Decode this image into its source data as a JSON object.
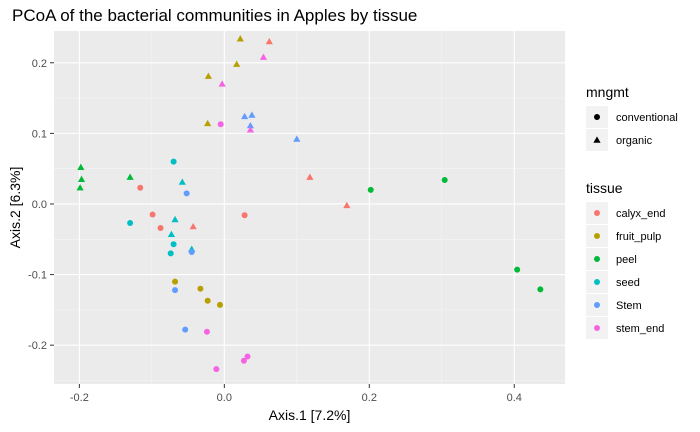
{
  "chart_data": {
    "type": "scatter",
    "title": "PCoA of the bacterial communities in Apples by tissue",
    "xlabel": "Axis.1   [7.2%]",
    "ylabel": "Axis.2   [6.3%]",
    "xlim": [
      -0.235,
      0.47
    ],
    "ylim": [
      -0.255,
      0.245
    ],
    "xticks": [
      -0.2,
      0.0,
      0.2,
      0.4
    ],
    "xtick_labels": [
      "-0.2",
      "0.0",
      "0.2",
      "0.4"
    ],
    "yticks": [
      -0.2,
      -0.1,
      0.0,
      0.1,
      0.2
    ],
    "ytick_labels": [
      "-0.2",
      "-0.1",
      "0.0",
      "0.1",
      "0.2"
    ],
    "grid": true,
    "background": "#ebebeb",
    "legends": [
      {
        "title": "mngmt",
        "placement": "right",
        "entries": [
          {
            "label": "conventional",
            "shape": "circle"
          },
          {
            "label": "organic",
            "shape": "triangle"
          }
        ]
      },
      {
        "title": "tissue",
        "placement": "right",
        "entries": [
          {
            "label": "calyx_end",
            "color": "#F8766D"
          },
          {
            "label": "fruit_pulp",
            "color": "#B79F00"
          },
          {
            "label": "peel",
            "color": "#00BA38"
          },
          {
            "label": "seed",
            "color": "#00BFC4"
          },
          {
            "label": "Stem",
            "color": "#619CFF"
          },
          {
            "label": "stem_end",
            "color": "#F564E3"
          }
        ]
      }
    ],
    "series": [
      {
        "name": "calyx_end",
        "color": "#F8766D",
        "points": [
          {
            "x": -0.116,
            "y": 0.023,
            "mngmt": "conventional"
          },
          {
            "x": -0.099,
            "y": -0.015,
            "mngmt": "conventional"
          },
          {
            "x": -0.088,
            "y": -0.034,
            "mngmt": "conventional"
          },
          {
            "x": 0.028,
            "y": -0.016,
            "mngmt": "conventional"
          },
          {
            "x": -0.043,
            "y": -0.032,
            "mngmt": "organic"
          },
          {
            "x": 0.118,
            "y": 0.038,
            "mngmt": "organic"
          },
          {
            "x": 0.169,
            "y": -0.002,
            "mngmt": "organic"
          },
          {
            "x": 0.062,
            "y": 0.23,
            "mngmt": "organic"
          }
        ]
      },
      {
        "name": "fruit_pulp",
        "color": "#B79F00",
        "points": [
          {
            "x": -0.068,
            "y": -0.11,
            "mngmt": "conventional"
          },
          {
            "x": -0.033,
            "y": -0.12,
            "mngmt": "conventional"
          },
          {
            "x": -0.023,
            "y": -0.137,
            "mngmt": "conventional"
          },
          {
            "x": -0.006,
            "y": -0.143,
            "mngmt": "conventional"
          },
          {
            "x": 0.022,
            "y": 0.234,
            "mngmt": "organic"
          },
          {
            "x": 0.017,
            "y": 0.198,
            "mngmt": "organic"
          },
          {
            "x": -0.022,
            "y": 0.181,
            "mngmt": "organic"
          },
          {
            "x": -0.023,
            "y": 0.114,
            "mngmt": "organic"
          }
        ]
      },
      {
        "name": "peel",
        "color": "#00BA38",
        "points": [
          {
            "x": 0.202,
            "y": 0.02,
            "mngmt": "conventional"
          },
          {
            "x": 0.304,
            "y": 0.034,
            "mngmt": "conventional"
          },
          {
            "x": 0.404,
            "y": -0.093,
            "mngmt": "conventional"
          },
          {
            "x": 0.436,
            "y": -0.121,
            "mngmt": "conventional"
          },
          {
            "x": -0.198,
            "y": 0.052,
            "mngmt": "organic"
          },
          {
            "x": -0.197,
            "y": 0.035,
            "mngmt": "organic"
          },
          {
            "x": -0.199,
            "y": 0.023,
            "mngmt": "organic"
          },
          {
            "x": -0.13,
            "y": 0.038,
            "mngmt": "organic"
          }
        ]
      },
      {
        "name": "seed",
        "color": "#00BFC4",
        "points": [
          {
            "x": -0.13,
            "y": -0.027,
            "mngmt": "conventional"
          },
          {
            "x": -0.07,
            "y": 0.06,
            "mngmt": "conventional"
          },
          {
            "x": -0.07,
            "y": -0.057,
            "mngmt": "conventional"
          },
          {
            "x": -0.074,
            "y": -0.07,
            "mngmt": "conventional"
          },
          {
            "x": -0.073,
            "y": -0.043,
            "mngmt": "organic"
          },
          {
            "x": -0.058,
            "y": 0.031,
            "mngmt": "organic"
          },
          {
            "x": -0.045,
            "y": -0.064,
            "mngmt": "organic"
          },
          {
            "x": -0.068,
            "y": -0.022,
            "mngmt": "organic"
          }
        ]
      },
      {
        "name": "Stem",
        "color": "#619CFF",
        "points": [
          {
            "x": -0.068,
            "y": -0.122,
            "mngmt": "conventional"
          },
          {
            "x": -0.054,
            "y": -0.178,
            "mngmt": "conventional"
          },
          {
            "x": -0.045,
            "y": -0.068,
            "mngmt": "conventional"
          },
          {
            "x": -0.052,
            "y": 0.015,
            "mngmt": "conventional"
          },
          {
            "x": 0.028,
            "y": 0.124,
            "mngmt": "organic"
          },
          {
            "x": 0.038,
            "y": 0.126,
            "mngmt": "organic"
          },
          {
            "x": 0.036,
            "y": 0.111,
            "mngmt": "organic"
          },
          {
            "x": 0.1,
            "y": 0.092,
            "mngmt": "organic"
          }
        ]
      },
      {
        "name": "stem_end",
        "color": "#F564E3",
        "points": [
          {
            "x": -0.024,
            "y": -0.181,
            "mngmt": "conventional"
          },
          {
            "x": 0.027,
            "y": -0.222,
            "mngmt": "conventional"
          },
          {
            "x": 0.032,
            "y": -0.216,
            "mngmt": "conventional"
          },
          {
            "x": -0.011,
            "y": -0.234,
            "mngmt": "conventional"
          },
          {
            "x": -0.005,
            "y": 0.113,
            "mngmt": "conventional"
          },
          {
            "x": -0.003,
            "y": 0.17,
            "mngmt": "organic"
          },
          {
            "x": 0.054,
            "y": 0.208,
            "mngmt": "organic"
          },
          {
            "x": 0.036,
            "y": 0.105,
            "mngmt": "organic"
          }
        ]
      }
    ]
  }
}
